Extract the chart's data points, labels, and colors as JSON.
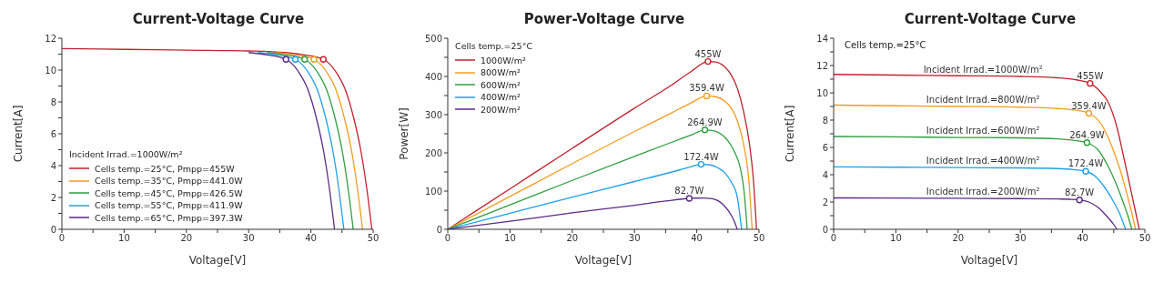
{
  "chart_data": [
    {
      "type": "line",
      "title": "Current-Voltage Curve",
      "xlabel": "Voltage[V]",
      "ylabel": "Current[A]",
      "legend": "bottom left",
      "legend_title": "Incident Irrad.=1000W/m²",
      "xlim": [
        0,
        50
      ],
      "xticks": [
        0,
        {
          "value": 5,
          "label": null
        },
        10,
        {
          "value": 15,
          "label": null
        },
        20,
        {
          "value": 25,
          "label": null
        },
        30,
        {
          "value": 35,
          "label": null
        },
        40,
        {
          "value": 45,
          "label": null
        },
        50
      ],
      "ylim": [
        0,
        12
      ],
      "yticks": [
        0,
        {
          "value": 1,
          "label": null
        },
        2,
        {
          "value": 3,
          "label": null
        },
        4,
        {
          "value": 5,
          "label": null
        },
        6,
        {
          "value": 7,
          "label": null
        },
        8,
        {
          "value": 9,
          "label": null
        },
        10,
        {
          "value": 11,
          "label": null
        },
        12
      ],
      "series": [
        {
          "name": "Cells temp.=25°C, Pmpp=455W",
          "color": "#c0222e",
          "x": [
            0,
            10,
            20,
            30,
            36,
            39,
            42,
            44,
            45.5,
            47,
            48,
            49,
            49.8
          ],
          "values": [
            11.35,
            11.3,
            11.25,
            11.2,
            11.1,
            10.95,
            10.67,
            9.9,
            8.8,
            6.8,
            5,
            2.5,
            0
          ]
        },
        {
          "name": "Cells temp.=35°C, Pmpp=441.0W",
          "color": "#f39c1f",
          "x": [
            34.5,
            37.5,
            40.5,
            42.5,
            44,
            45.5,
            46.5,
            47.5,
            48.3
          ],
          "values": [
            11.1,
            10.95,
            10.67,
            9.9,
            8.8,
            6.8,
            5,
            2.5,
            0
          ]
        },
        {
          "name": "Cells temp.=45°C, Pmpp=426.5W",
          "color": "#2e9e3e",
          "x": [
            33,
            36,
            39,
            41,
            42.5,
            44,
            45,
            46,
            46.8
          ],
          "values": [
            11.1,
            10.95,
            10.67,
            9.9,
            8.8,
            6.8,
            5,
            2.5,
            0
          ]
        },
        {
          "name": "Cells temp.=55°C, Pmpp=411.9W",
          "color": "#1ea0e6",
          "x": [
            31.5,
            34.5,
            37.5,
            39.5,
            41,
            42.5,
            43.5,
            44.5,
            45.3
          ],
          "values": [
            11.1,
            10.95,
            10.67,
            9.9,
            8.8,
            6.8,
            5,
            2.5,
            0
          ]
        },
        {
          "name": "Cells temp.=65°C, Pmpp=397.3W",
          "color": "#5b2a86",
          "x": [
            30,
            33,
            36,
            38,
            39.5,
            41,
            42,
            43,
            43.8
          ],
          "values": [
            11.1,
            10.95,
            10.67,
            9.9,
            8.8,
            6.8,
            5,
            2.5,
            0
          ]
        },
        {
          "type": "scatter",
          "marker": "circle",
          "x": [
            42,
            40.5,
            39,
            37.5,
            36
          ],
          "values": [
            10.67,
            10.67,
            10.67,
            10.67,
            10.67
          ],
          "colors": [
            "#c0222e",
            "#f39c1f",
            "#2e9e3e",
            "#1ea0e6",
            "#5b2a86"
          ]
        }
      ]
    },
    {
      "type": "line",
      "title": "Power-Voltage Curve",
      "xlabel": "Voltage[V]",
      "ylabel": "Power[W]",
      "legend": "top left",
      "legend_title": "Cells temp.=25°C",
      "xlim": [
        0,
        50
      ],
      "xticks": [
        0,
        {
          "value": 5,
          "label": null
        },
        10,
        {
          "value": 15,
          "label": null
        },
        20,
        {
          "value": 25,
          "label": null
        },
        30,
        {
          "value": 35,
          "label": null
        },
        40,
        {
          "value": 45,
          "label": null
        },
        50
      ],
      "ylim": [
        0,
        500
      ],
      "yticks": [
        0,
        {
          "value": 50,
          "label": null
        },
        100,
        {
          "value": 150,
          "label": null
        },
        200,
        {
          "value": 250,
          "label": null
        },
        300,
        {
          "value": 350,
          "label": null
        },
        400,
        {
          "value": 450,
          "label": null
        },
        500
      ],
      "series": [
        {
          "name": "1000W/m²",
          "color": "#c0222e",
          "x": [
            0,
            10,
            20,
            30,
            36,
            39,
            41.8,
            43,
            44.5,
            45.5,
            46.5,
            47.5,
            48.5,
            49.1,
            49.6
          ],
          "values": [
            0,
            106,
            212,
            317,
            378,
            412,
            439,
            438,
            425,
            405,
            370,
            310,
            220,
            130,
            0
          ]
        },
        {
          "name": "800W/m²",
          "color": "#f39c1f",
          "x": [
            0,
            10,
            20,
            30,
            36,
            39,
            41.6,
            43,
            44.5,
            45.5,
            46.5,
            47.5,
            48.3,
            48.9
          ],
          "values": [
            0,
            86,
            172,
            256,
            305,
            330,
            349,
            347,
            336,
            318,
            285,
            225,
            140,
            0
          ]
        },
        {
          "name": "600W/m²",
          "color": "#2e9e3e",
          "x": [
            0,
            10,
            20,
            30,
            36,
            39,
            41.3,
            42.7,
            44,
            45,
            46,
            47,
            47.6,
            48.1
          ],
          "values": [
            0,
            64,
            128,
            191,
            228,
            246,
            260,
            258,
            248,
            232,
            205,
            160,
            100,
            0
          ]
        },
        {
          "name": "400W/m²",
          "color": "#1ea0e6",
          "x": [
            0,
            10,
            20,
            30,
            36,
            38.5,
            40.7,
            42,
            43.5,
            44.5,
            45.5,
            46.5,
            47.2
          ],
          "values": [
            0,
            42,
            84,
            125,
            150,
            161,
            170,
            169,
            160,
            148,
            125,
            85,
            0
          ]
        },
        {
          "name": "200W/m²",
          "color": "#5b2a86",
          "x": [
            0,
            10,
            20,
            30,
            35,
            38.8,
            41,
            42.5,
            43.5,
            44.5,
            45.5,
            46,
            46.5
          ],
          "values": [
            0,
            21,
            43,
            63,
            74,
            81,
            82,
            80,
            74,
            60,
            38,
            22,
            0
          ]
        },
        {
          "type": "scatter",
          "marker": "circle",
          "x": [
            41.8,
            41.6,
            41.3,
            40.7,
            38.8
          ],
          "values": [
            439,
            349,
            260,
            170,
            81
          ],
          "colors": [
            "#c0222e",
            "#f39c1f",
            "#2e9e3e",
            "#1ea0e6",
            "#5b2a86"
          ]
        }
      ],
      "annotations": [
        {
          "text": "455W",
          "x": 41.8,
          "y": 439
        },
        {
          "text": "359.4W",
          "x": 41.6,
          "y": 349
        },
        {
          "text": "264.9W",
          "x": 41.3,
          "y": 260
        },
        {
          "text": "172.4W",
          "x": 40.7,
          "y": 170
        },
        {
          "text": "82.7W",
          "x": 38.8,
          "y": 81
        }
      ]
    },
    {
      "type": "line",
      "title": "Current-Voltage Curve",
      "xlabel": "Voltage[V]",
      "ylabel": "Current[A]",
      "xlim": [
        0,
        50
      ],
      "xticks": [
        0,
        {
          "value": 5,
          "label": null
        },
        10,
        {
          "value": 15,
          "label": null
        },
        20,
        {
          "value": 25,
          "label": null
        },
        30,
        {
          "value": 35,
          "label": null
        },
        40,
        {
          "value": 45,
          "label": null
        },
        50
      ],
      "ylim": [
        0,
        14
      ],
      "yticks": [
        0,
        {
          "value": 1,
          "label": null
        },
        2,
        {
          "value": 3,
          "label": null
        },
        4,
        {
          "value": 5,
          "label": null
        },
        6,
        {
          "value": 7,
          "label": null
        },
        8,
        {
          "value": 9,
          "label": null
        },
        10,
        {
          "value": 11,
          "label": null
        },
        12,
        {
          "value": 13,
          "label": null
        },
        14
      ],
      "series": [
        {
          "name": "Incident Irrad.=1000W/m²",
          "color": "#c0222e",
          "x": [
            0,
            10,
            20,
            30,
            36,
            39,
            41.2,
            43,
            44,
            45.5,
            46.5,
            47.5,
            48.4,
            49.1
          ],
          "values": [
            11.35,
            11.3,
            11.25,
            11.2,
            11.1,
            10.95,
            10.69,
            10,
            9.4,
            7.5,
            5.5,
            3.4,
            1.5,
            0
          ]
        },
        {
          "name": "Incident Irrad.=800W/m²",
          "color": "#f39c1f",
          "x": [
            0,
            10,
            20,
            30,
            36,
            39,
            41,
            43,
            44.5,
            46,
            47,
            48,
            48.5
          ],
          "values": [
            9.1,
            9.05,
            9,
            8.95,
            8.85,
            8.72,
            8.5,
            7.7,
            6.3,
            4.4,
            2.8,
            1,
            0
          ]
        },
        {
          "name": "Incident Irrad.=600W/m²",
          "color": "#2e9e3e",
          "x": [
            0,
            10,
            20,
            30,
            36,
            38.5,
            40.7,
            42.5,
            44,
            45.5,
            46.5,
            47.4,
            47.9
          ],
          "values": [
            6.8,
            6.77,
            6.73,
            6.7,
            6.62,
            6.52,
            6.35,
            5.8,
            4.7,
            3.2,
            2,
            0.8,
            0
          ]
        },
        {
          "name": "Incident Irrad.=400W/m²",
          "color": "#1ea0e6",
          "x": [
            0,
            10,
            20,
            30,
            36,
            38.5,
            40.5,
            42,
            43.5,
            45,
            46,
            46.9
          ],
          "values": [
            4.57,
            4.55,
            4.52,
            4.5,
            4.45,
            4.38,
            4.25,
            3.9,
            3.1,
            2,
            1.1,
            0
          ]
        },
        {
          "name": "Incident Irrad.=200W/m²",
          "color": "#5b2a86",
          "x": [
            0,
            10,
            20,
            30,
            36,
            38,
            39.5,
            41,
            42.5,
            44,
            45,
            45.5
          ],
          "values": [
            2.3,
            2.29,
            2.27,
            2.25,
            2.22,
            2.2,
            2.15,
            2,
            1.6,
            0.9,
            0.35,
            0
          ]
        },
        {
          "type": "scatter",
          "marker": "circle",
          "x": [
            41.2,
            41,
            40.7,
            40.5,
            39.5
          ],
          "values": [
            10.69,
            8.5,
            6.35,
            4.25,
            2.15
          ],
          "colors": [
            "#c0222e",
            "#f39c1f",
            "#2e9e3e",
            "#1ea0e6",
            "#5b2a86"
          ]
        }
      ],
      "annotations": [
        "Cells temp.=25°C",
        {
          "text": "455W",
          "x": 41.2,
          "y": 10.69
        },
        {
          "text": "359.4W",
          "x": 41,
          "y": 8.5
        },
        {
          "text": "264.9W",
          "x": 40.7,
          "y": 6.35
        },
        {
          "text": "172.4W",
          "x": 40.5,
          "y": 4.25
        },
        {
          "text": "82.7W",
          "x": 39.5,
          "y": 2.15
        }
      ]
    }
  ]
}
